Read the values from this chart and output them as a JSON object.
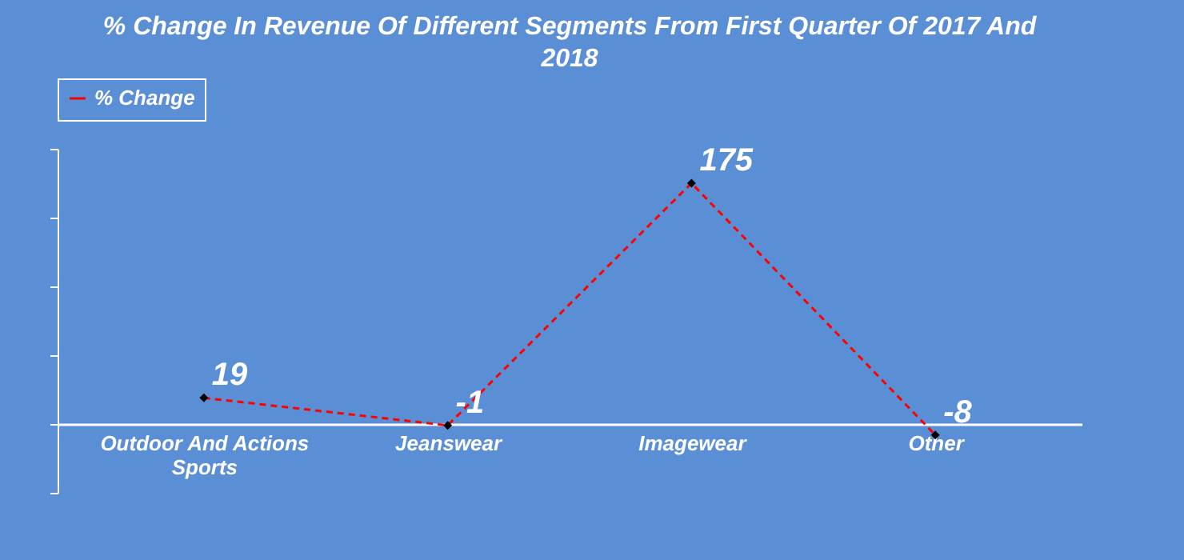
{
  "chart_data": {
    "type": "line",
    "title": "% Change In Revenue Of Different Segments From First Quarter Of 2017 And 2018",
    "categories": [
      "Outdoor And Actions Sports",
      "Jeanswear",
      "Imagewear",
      "Other"
    ],
    "series": [
      {
        "name": "% Change",
        "color": "#ff0000",
        "values": [
          19,
          -1,
          175,
          -8
        ]
      }
    ],
    "ylim": [
      -50,
      200
    ],
    "yticks": [
      {
        "value": -50,
        "label": null
      },
      {
        "value": 0,
        "label": null
      },
      {
        "value": 50,
        "label": null
      },
      {
        "value": 100,
        "label": null
      },
      {
        "value": 150,
        "label": null
      },
      {
        "value": 200,
        "label": null
      }
    ],
    "tick_labels": "x",
    "grid": false,
    "legend": "top",
    "marker": "diamond",
    "line_style": "dashed",
    "data_labels": true
  }
}
